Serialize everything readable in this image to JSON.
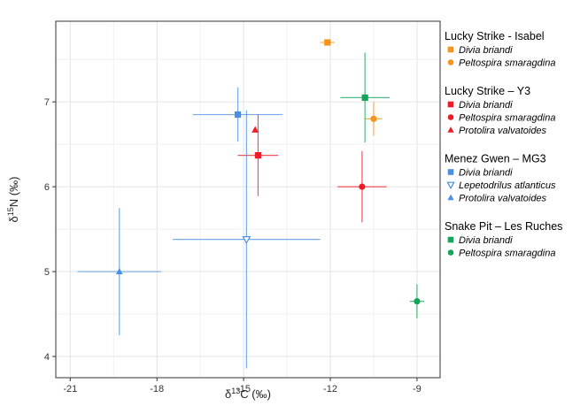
{
  "chart_data": {
    "type": "scatter",
    "xlabel": "δ13C (‰)",
    "ylabel": "δ15N (‰)",
    "xlim": [
      -21.5,
      -8.2
    ],
    "ylim": [
      3.75,
      7.95
    ],
    "x_ticks": [
      -21,
      -18,
      -15,
      -12,
      -9
    ],
    "y_ticks": [
      4,
      5,
      6,
      7
    ],
    "x_tick_labels": [
      "-21",
      "-18",
      "-15",
      "-12",
      "-9"
    ],
    "y_tick_labels": [
      "4",
      "5",
      "6",
      "7"
    ],
    "grid": true,
    "legend_position": "right",
    "groups": [
      {
        "name": "Lucky Strike - Isabel",
        "color": "#f7941d",
        "series": [
          {
            "name": "Divia briandi",
            "marker": "square",
            "x": -12.1,
            "y": 7.7,
            "x_err": 0.25,
            "y_err": 0.0
          },
          {
            "name": "Peltospira smaragdina",
            "marker": "circle",
            "x": -10.5,
            "y": 6.8,
            "x_err": 0.3,
            "y_err": 0.2
          }
        ]
      },
      {
        "name": "Lucky Strike – Y3",
        "color": "#ee1c25",
        "series": [
          {
            "name": "Divia briandi",
            "marker": "square",
            "x": -14.5,
            "y": 6.37,
            "x_err": 0.7,
            "y_err": 0.48
          },
          {
            "name": "Peltospira smaragdina",
            "marker": "circle",
            "x": -10.9,
            "y": 6.0,
            "x_err": 0.85,
            "y_err": 0.42
          },
          {
            "name": "Protolira valvatoides",
            "marker": "triangle",
            "x": -14.6,
            "y": 6.67,
            "x_err": 0.0,
            "y_err": 0.0
          }
        ]
      },
      {
        "name": "Menez Gwen – MG3",
        "color": "#4a90e2",
        "series": [
          {
            "name": "Divia briandi",
            "marker": "square",
            "x": -15.2,
            "y": 6.85,
            "x_err": 1.55,
            "y_err": 0.32
          },
          {
            "name": "Lepetodrilus atlanticus",
            "marker": "triangle-down-open",
            "x": -14.9,
            "y": 5.38,
            "x_err": 2.55,
            "y_err": 1.52
          },
          {
            "name": "Protolira valvatoides",
            "marker": "triangle",
            "x": -19.3,
            "y": 5.0,
            "x_err": 1.45,
            "y_err": 0.75
          }
        ]
      },
      {
        "name": "Snake Pit – Les Ruches",
        "color": "#13a65b",
        "series": [
          {
            "name": "Divia briandi",
            "marker": "square",
            "x": -10.8,
            "y": 7.05,
            "x_err": 0.85,
            "y_err": 0.53
          },
          {
            "name": "Peltospira smaragdina",
            "marker": "circle",
            "x": -9.0,
            "y": 4.65,
            "x_err": 0.25,
            "y_err": 0.2
          }
        ]
      }
    ]
  }
}
